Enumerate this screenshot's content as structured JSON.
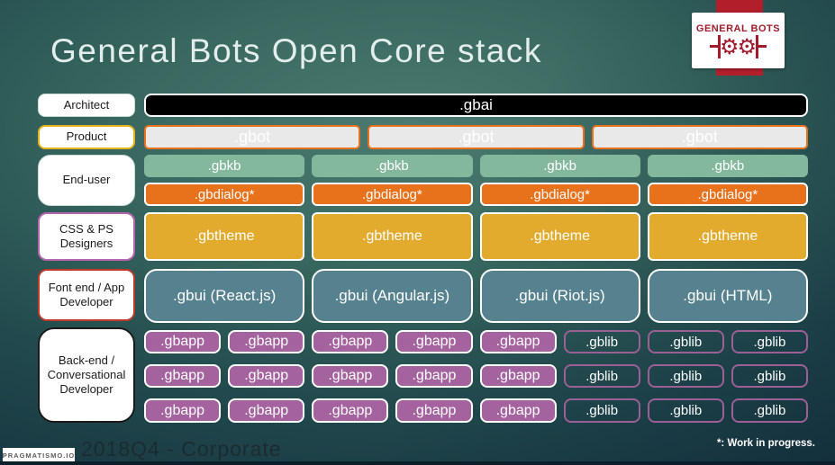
{
  "slide": {
    "title": "General Bots Open Core stack",
    "footer_caption": "2018Q4 - Corporate",
    "footer_badge": "PRAGMATISMO.IO",
    "footnote": "*: Work in progress."
  },
  "logo": {
    "brand": "GENERAL BOTS",
    "gear": "⚙"
  },
  "labels": {
    "architect": "Architect",
    "product": "Product",
    "end_user": "End-user",
    "designers": "CSS & PS Designers",
    "frontend": "Font end / App Developer",
    "backend": "Back-end / Conversational Developer"
  },
  "stack": {
    "gbai": ".gbai",
    "gbot": [
      ".gbot",
      ".gbot",
      ".gbot"
    ],
    "gbkb": [
      ".gbkb",
      ".gbkb",
      ".gbkb",
      ".gbkb"
    ],
    "gbdialog": [
      ".gbdialog*",
      ".gbdialog*",
      ".gbdialog*",
      ".gbdialog*"
    ],
    "gbtheme": [
      ".gbtheme",
      ".gbtheme",
      ".gbtheme",
      ".gbtheme"
    ],
    "gbui": [
      ".gbui (React.js)",
      ".gbui (Angular.js)",
      ".gbui (Riot.js)",
      ".gbui (HTML)"
    ],
    "app_rows": [
      [
        ".gbapp",
        ".gbapp",
        ".gbapp",
        ".gbapp",
        ".gbapp",
        ".gblib",
        ".gblib",
        ".gblib"
      ],
      [
        ".gbapp",
        ".gbapp",
        ".gbapp",
        ".gbapp",
        ".gbapp",
        ".gblib",
        ".gblib",
        ".gblib"
      ],
      [
        ".gbapp",
        ".gbapp",
        ".gbapp",
        ".gbapp",
        ".gbapp",
        ".gblib",
        ".gblib",
        ".gblib"
      ]
    ]
  },
  "colors": {
    "background_dark": "#132f3b",
    "background_light": "#4b7a70",
    "title_text": "#e3edec",
    "gbai_bg": "#000000",
    "gbot_bg": "#e9e9e9",
    "gbot_border": "#e8711c",
    "gbkb_bg": "#83b89d",
    "gbdialog_bg": "#e8711c",
    "gbtheme_bg": "#e2ab2d",
    "gbui_bg": "#56818f",
    "gbapp_bg": "#a4639e",
    "gblib_border": "#9c5f96",
    "product_border": "#e6b31e",
    "designers_border": "#b565ae",
    "frontend_border": "#c1392b",
    "backend_border": "#1a1a1a",
    "logo_red": "#b21f2b",
    "logo_text": "#a21a2c"
  }
}
